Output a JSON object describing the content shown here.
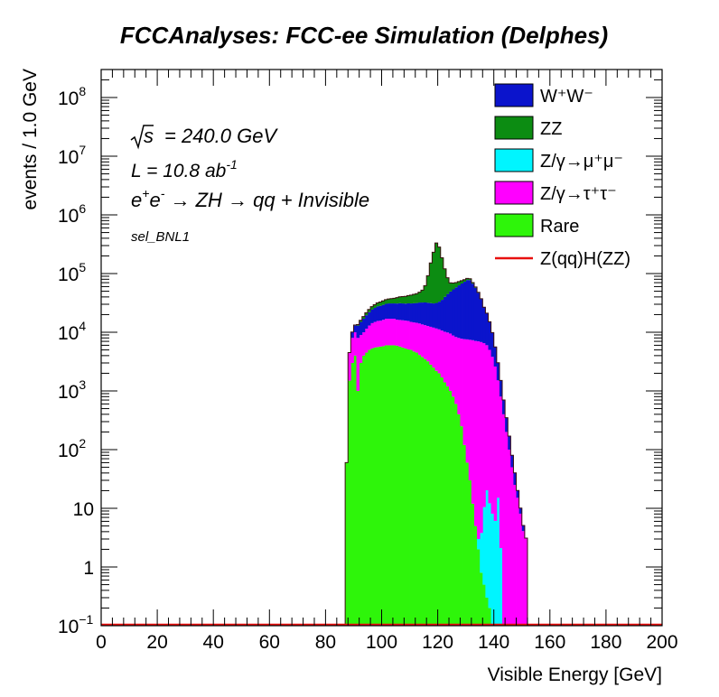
{
  "chart_data": {
    "type": "histogram-stacked",
    "title": "FCCAnalyses: FCC-ee Simulation (Delphes)",
    "xlabel": "Visible Energy [GeV]",
    "ylabel": "events / 1.0 GeV",
    "xlim": [
      0,
      200
    ],
    "ylim": [
      0.1,
      300000000
    ],
    "yscale": "log",
    "x_ticks": [
      "0",
      "20",
      "40",
      "60",
      "80",
      "100",
      "120",
      "140",
      "160",
      "180",
      "200"
    ],
    "y_ticks": [
      {
        "v": 0.1,
        "base": "10",
        "exp": "−1"
      },
      {
        "v": 1,
        "base": "1",
        "exp": ""
      },
      {
        "v": 10,
        "base": "10",
        "exp": ""
      },
      {
        "v": 100,
        "base": "10",
        "exp": "2"
      },
      {
        "v": 1000,
        "base": "10",
        "exp": "3"
      },
      {
        "v": 10000,
        "base": "10",
        "exp": "4"
      },
      {
        "v": 100000,
        "base": "10",
        "exp": "5"
      },
      {
        "v": 1000000,
        "base": "10",
        "exp": "6"
      },
      {
        "v": 10000000,
        "base": "10",
        "exp": "7"
      },
      {
        "v": 100000000,
        "base": "10",
        "exp": "8"
      }
    ],
    "annotations": {
      "sqrt_s": "= 240.0 GeV",
      "lumi_prefix": "L = 10.8 ab",
      "lumi_exp": "-1",
      "process_a": "e",
      "process_b": "e",
      "process_c": " → ZH → qq + Invisible",
      "selection": "sel_BNL1"
    },
    "legend": {
      "placement": "top-right",
      "entries": [
        {
          "label": "W⁺W⁻",
          "color": "#0B14CC",
          "style": "fill"
        },
        {
          "label": "ZZ",
          "color": "#0C8C12",
          "style": "fill"
        },
        {
          "label": "Z/γ→μ⁺μ⁻",
          "color": "#00F5FF",
          "style": "fill"
        },
        {
          "label": "Z/γ→τ⁺τ⁻",
          "color": "#FF00FF",
          "style": "fill"
        },
        {
          "label": "Rare",
          "color": "#2EF50A",
          "style": "fill"
        },
        {
          "label": "Z(qq)H(ZZ)",
          "color": "#E8100F",
          "style": "line"
        }
      ]
    },
    "bin_centers": [
      87.5,
      88.5,
      89.5,
      90.5,
      91.5,
      92.5,
      93.5,
      94.5,
      95.5,
      96.5,
      97.5,
      98.5,
      99.5,
      100.5,
      101.5,
      102.5,
      103.5,
      104.5,
      105.5,
      106.5,
      107.5,
      108.5,
      109.5,
      110.5,
      111.5,
      112.5,
      113.5,
      114.5,
      115.5,
      116.5,
      117.5,
      118.5,
      119.5,
      120.5,
      121.5,
      122.5,
      123.5,
      124.5,
      125.5,
      126.5,
      127.5,
      128.5,
      129.5,
      130.5,
      131.5,
      132.5,
      133.5,
      134.5,
      135.5,
      136.5,
      137.5,
      138.5,
      139.5,
      140.5,
      141.5,
      142.5,
      143.5,
      144.5,
      145.5,
      146.5,
      147.5,
      148.5,
      149.5,
      150.5,
      151.5
    ],
    "series": [
      {
        "name": "Rare",
        "color": "#2EF50A",
        "values": [
          60,
          1500,
          3000,
          4000,
          1000,
          3000,
          4000,
          4500,
          5000,
          5300,
          5500,
          5600,
          5700,
          5800,
          6000,
          6000,
          6000,
          6000,
          5900,
          5700,
          5500,
          5300,
          5100,
          5000,
          4700,
          4500,
          4100,
          3800,
          3500,
          3200,
          2800,
          2500,
          2200,
          2000,
          1700,
          1400,
          1200,
          1000,
          800,
          600,
          400,
          250,
          120,
          60,
          30,
          12,
          5,
          2,
          0.8,
          0.5,
          0.3,
          0.2,
          0.1,
          0.1,
          0.1,
          0.1,
          0.1,
          0.1,
          0.1,
          0.1,
          0.1,
          0.1,
          0.1,
          0.1,
          0.1
        ]
      },
      {
        "name": "Z/γ→μ⁺μ⁻",
        "color": "#00F5FF",
        "values": [
          0,
          0,
          0,
          0,
          0,
          0,
          0,
          0,
          0,
          0,
          0,
          0,
          0,
          1,
          1,
          0,
          0,
          0,
          1,
          0,
          0,
          0,
          0,
          0,
          0,
          0,
          0,
          0,
          0,
          0,
          0,
          1,
          1,
          0,
          0,
          0,
          0,
          1,
          0,
          0,
          0,
          1,
          0,
          0,
          0,
          0,
          0,
          1,
          3,
          10,
          20,
          12,
          8,
          6,
          15,
          2,
          0,
          0,
          0,
          0,
          0,
          0,
          0,
          0,
          0
        ]
      },
      {
        "name": "Z/γ→τ⁺τ⁻",
        "color": "#FF00FF",
        "values": [
          0,
          3000,
          5000,
          6000,
          7000,
          6000,
          6000,
          7000,
          8000,
          9000,
          9500,
          10000,
          10000,
          10500,
          11000,
          11000,
          11000,
          11000,
          10500,
          10500,
          10500,
          10500,
          10500,
          10000,
          10000,
          10000,
          10000,
          9800,
          9700,
          9600,
          9600,
          9500,
          9400,
          9200,
          9000,
          8800,
          8700,
          8500,
          8000,
          7700,
          7600,
          7500,
          7500,
          7500,
          7400,
          7300,
          7100,
          7000,
          6800,
          6500,
          6000,
          5000,
          3800,
          2600,
          1500,
          800,
          400,
          200,
          100,
          50,
          25,
          15,
          8,
          4,
          3
        ]
      },
      {
        "name": "W⁺W⁻",
        "color": "#0B14CC",
        "values": [
          0,
          0,
          2000,
          3000,
          5000,
          6000,
          7000,
          8000,
          9000,
          10000,
          11000,
          12000,
          12500,
          13000,
          13500,
          14000,
          14000,
          14000,
          14500,
          15000,
          15000,
          15000,
          15500,
          16000,
          16500,
          17000,
          18000,
          18500,
          19000,
          19000,
          19000,
          19000,
          20000,
          22000,
          25000,
          30000,
          35000,
          40000,
          45000,
          50000,
          55000,
          60000,
          65000,
          70000,
          70000,
          60000,
          50000,
          40000,
          30000,
          20000,
          15000,
          10000,
          6000,
          3000,
          1500,
          700,
          300,
          150,
          70,
          30,
          15,
          5,
          2,
          1,
          0
        ]
      },
      {
        "name": "ZZ",
        "color": "#0C8C12",
        "values": [
          0,
          0,
          100,
          300,
          500,
          1000,
          1500,
          2000,
          2500,
          3000,
          3500,
          4000,
          4500,
          5000,
          5500,
          6000,
          6500,
          7000,
          8000,
          9000,
          9500,
          10000,
          11000,
          12000,
          13000,
          14000,
          16000,
          20000,
          30000,
          60000,
          120000,
          200000,
          300000,
          250000,
          150000,
          80000,
          40000,
          20000,
          15000,
          12000,
          10000,
          8000,
          6000,
          5000,
          4000,
          3000,
          2000,
          1000,
          500,
          250,
          150,
          100,
          50,
          30,
          15,
          5,
          2,
          0,
          0,
          0,
          0,
          0,
          0,
          0,
          0
        ]
      }
    ],
    "line_series": {
      "name": "Z(qq)H(ZZ)",
      "color": "#E8100F"
    }
  }
}
